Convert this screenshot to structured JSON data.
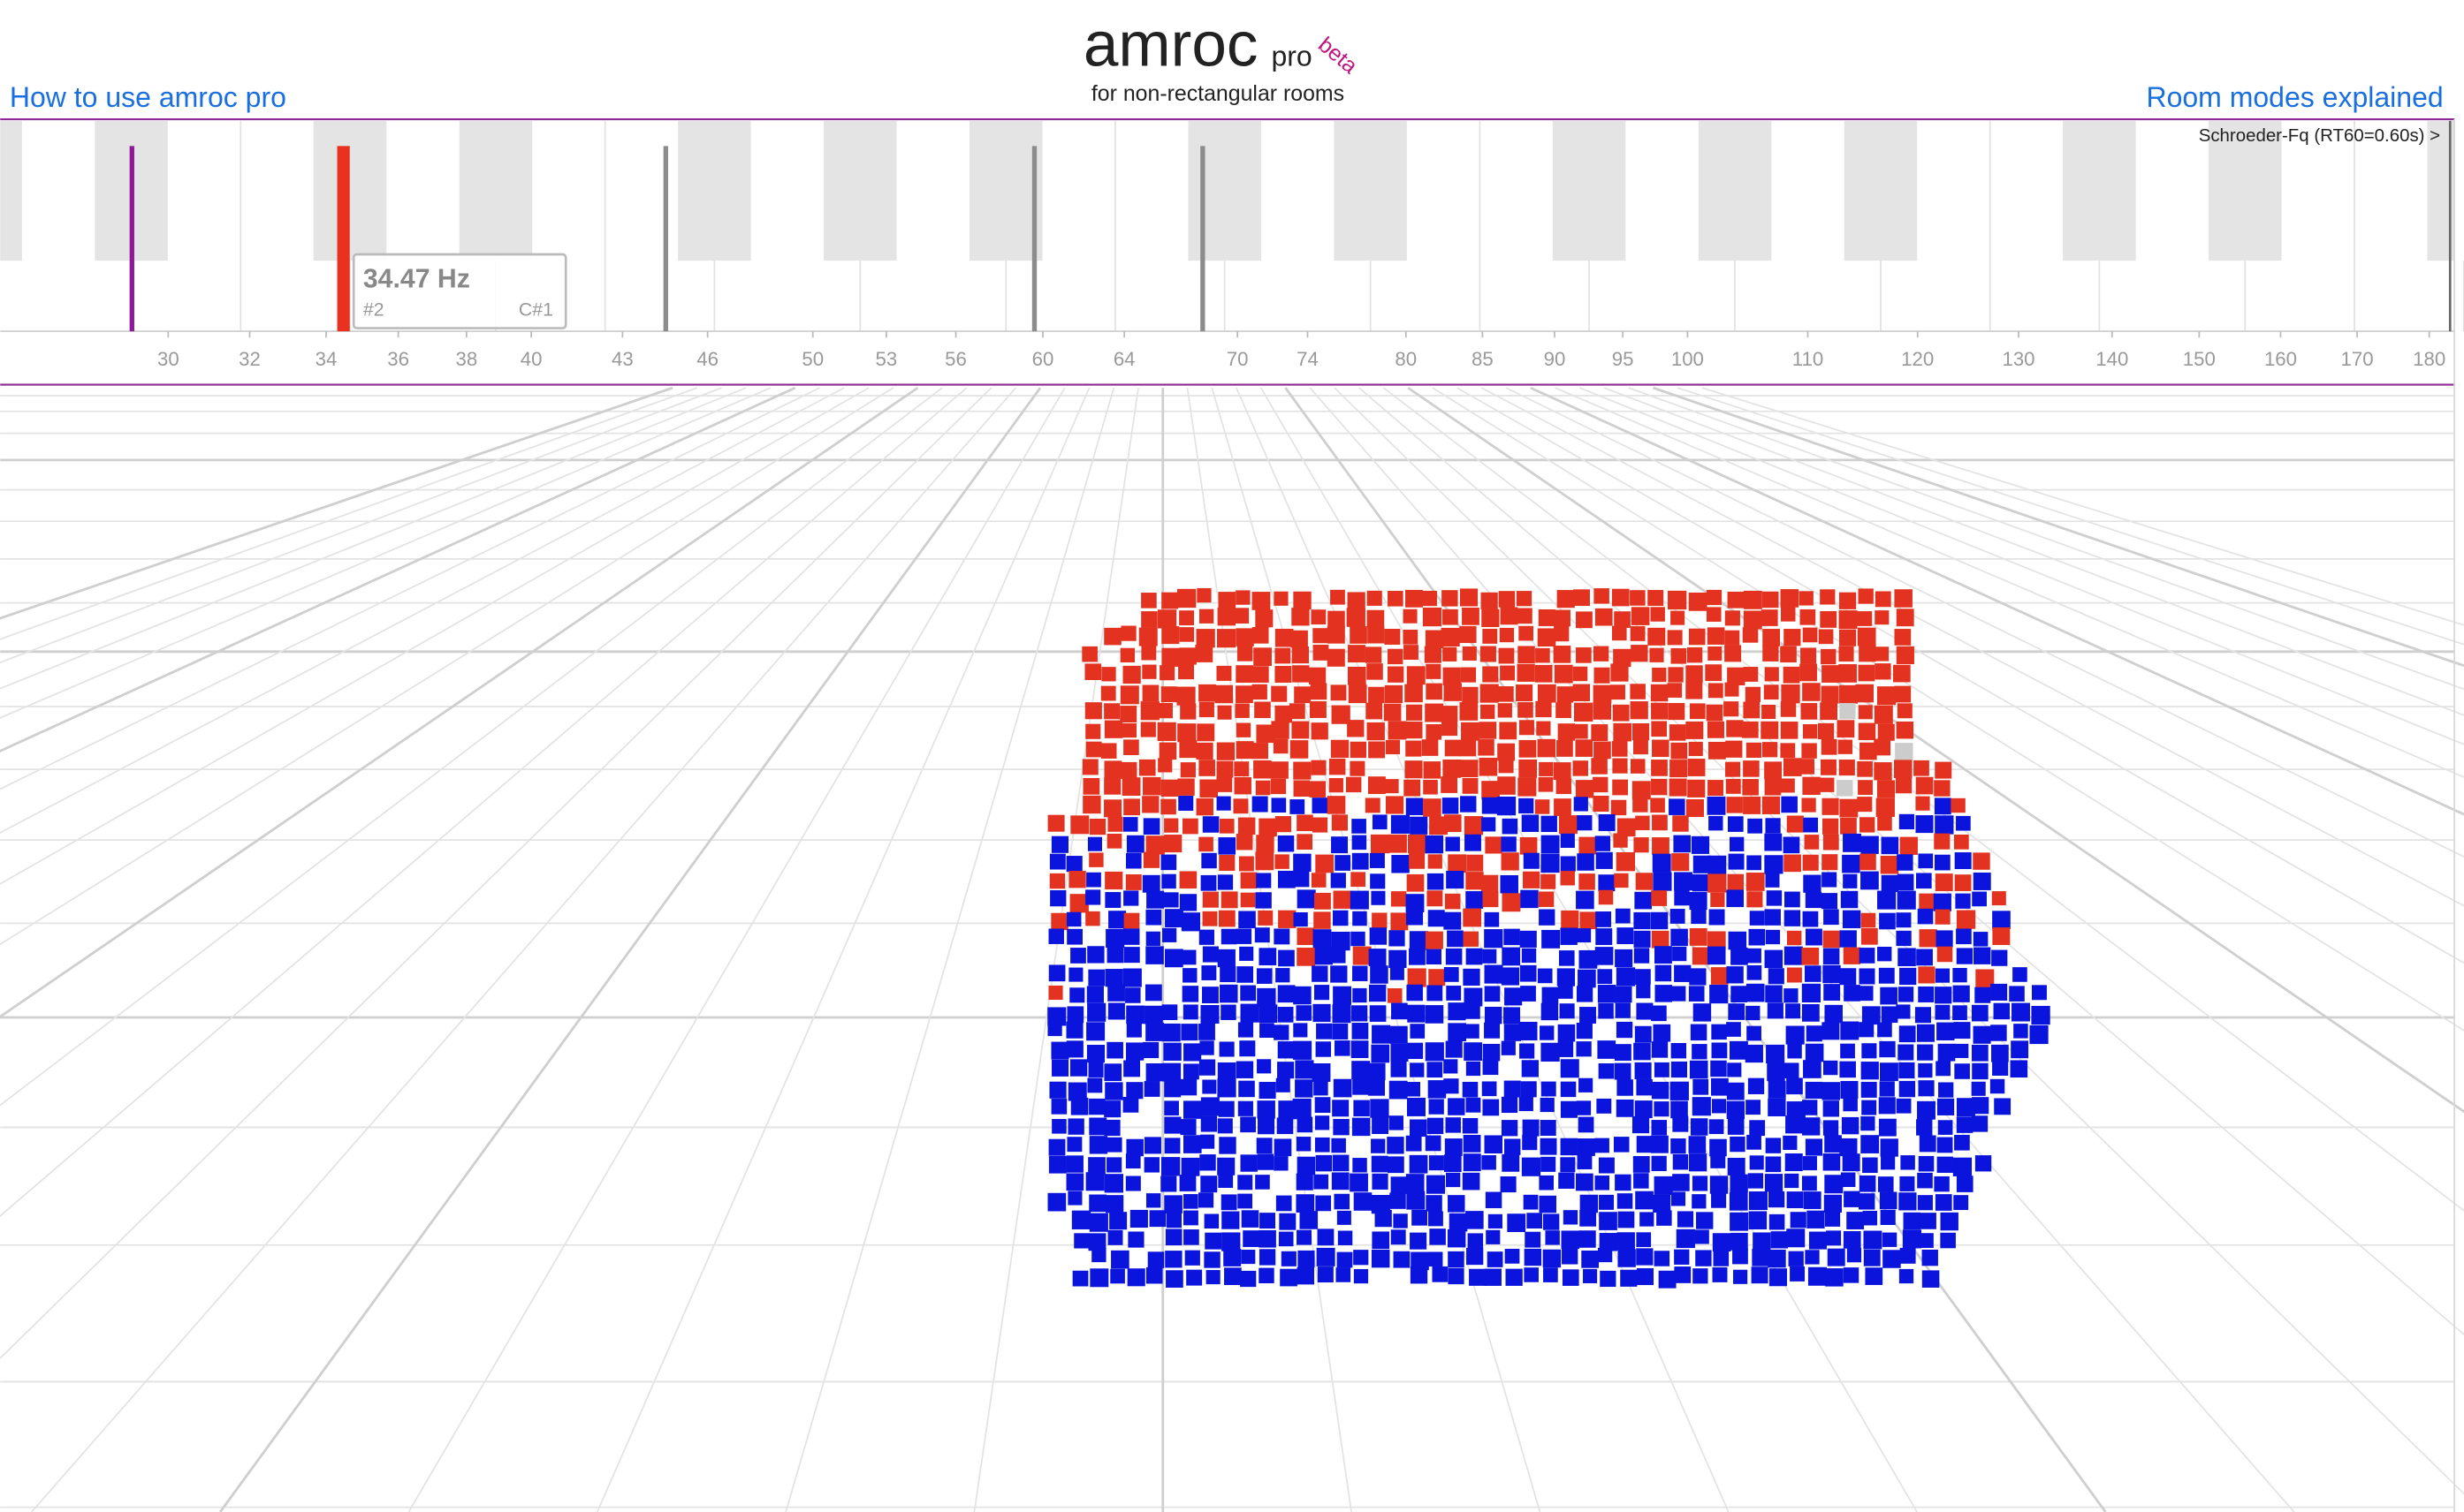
{
  "header": {
    "title": "amroc",
    "title_sub": "pro",
    "title_sup": "beta",
    "tagline": "for non-rectangular rooms"
  },
  "links": {
    "left": "How to use amroc pro",
    "right": "Room modes explained"
  },
  "spectrum": {
    "log": true,
    "xlim": [
      26.26,
      185
    ],
    "xticks": [
      30,
      32,
      34,
      36,
      38,
      40,
      43,
      46,
      50,
      53,
      56,
      60,
      64,
      70,
      74,
      80,
      85,
      90,
      95,
      100,
      110,
      120,
      130,
      140,
      150,
      160,
      170,
      180
    ],
    "schroeder_label": "Schroeder-Fq (RT60=0.60s) >",
    "schroeder_hz": 183,
    "modes": [
      {
        "freq": 29.15,
        "color": "#8e1b96"
      },
      {
        "freq": 34.47,
        "color": "#e8321f"
      },
      {
        "freq": 44.5,
        "color": "#8c8c8c"
      },
      {
        "freq": 59.6,
        "color": "#8c8c8c"
      },
      {
        "freq": 68.1,
        "color": "#8c8c8c"
      }
    ],
    "tooltip": {
      "freq_label": "34.47 Hz",
      "mode_label": "#2",
      "note_label": "C#1"
    }
  }
}
